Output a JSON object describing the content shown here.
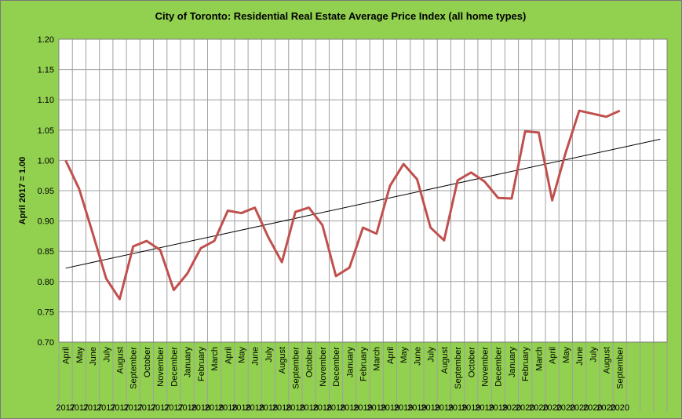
{
  "chart_data": {
    "type": "line",
    "title": "City of Toronto: Residential Real Estate Average Price Index  (all home types)",
    "y_label": "April 2017 = 1.00",
    "categories": [
      "April",
      "May",
      "June",
      "July",
      "August",
      "September",
      "October",
      "November",
      "December",
      "January",
      "February",
      "March",
      "April",
      "May",
      "June",
      "July",
      "August",
      "September",
      "October",
      "November",
      "December",
      "January",
      "February",
      "March",
      "April",
      "May",
      "June",
      "July",
      "August",
      "September",
      "October",
      "November",
      "December",
      "January",
      "February",
      "March",
      "April",
      "May",
      "June",
      "July",
      "August",
      "September",
      null,
      null,
      null
    ],
    "category_years": [
      "2017",
      "2017",
      "2017",
      "2017",
      "2017",
      "2017",
      "2017",
      "2017",
      "2017",
      "2018",
      "2018",
      "2018",
      "2018",
      "2018",
      "2018",
      "2018",
      "2018",
      "2018",
      "2018",
      "2018",
      "2018",
      "2019",
      "2019",
      "2019",
      "2019",
      "2019",
      "2019",
      "2019",
      "2019",
      "2019",
      "2019",
      "2019",
      "2019",
      "2020",
      "2020",
      "2020",
      "2020",
      "2020",
      "2020",
      "2020",
      "2020",
      "2020",
      null,
      null,
      null
    ],
    "series": [
      {
        "color": "#c0504d",
        "values": [
          1.0,
          0.953,
          0.88,
          0.805,
          0.771,
          0.858,
          0.867,
          0.852,
          0.786,
          0.813,
          0.855,
          0.867,
          0.917,
          0.913,
          0.922,
          0.873,
          0.832,
          0.915,
          0.922,
          0.893,
          0.809,
          0.823,
          0.889,
          0.879,
          0.958,
          0.994,
          0.969,
          0.889,
          0.868,
          0.967,
          0.98,
          0.965,
          0.938,
          0.937,
          1.048,
          1.046,
          0.934,
          1.013,
          1.082,
          1.077,
          1.072,
          1.082,
          null,
          null,
          null
        ]
      }
    ],
    "trendline": {
      "color": "#000000",
      "values": [
        0.822,
        1.035
      ]
    },
    "ylim": [
      0.7,
      1.2
    ],
    "yticks": [
      {
        "value": 0.7,
        "label": "0.70"
      },
      {
        "value": 0.75,
        "label": "0.75"
      },
      {
        "value": 0.8,
        "label": "0.80"
      },
      {
        "value": 0.85,
        "label": "0.85"
      },
      {
        "value": 0.9,
        "label": "0.90"
      },
      {
        "value": 0.95,
        "label": "0.95"
      },
      {
        "value": 1.0,
        "label": "1.00"
      },
      {
        "value": 1.05,
        "label": "1.05"
      },
      {
        "value": 1.1,
        "label": "1.10"
      },
      {
        "value": 1.15,
        "label": "1.15"
      },
      {
        "value": 1.2,
        "label": "1.20"
      }
    ],
    "grid": true,
    "background": "#92d050"
  }
}
